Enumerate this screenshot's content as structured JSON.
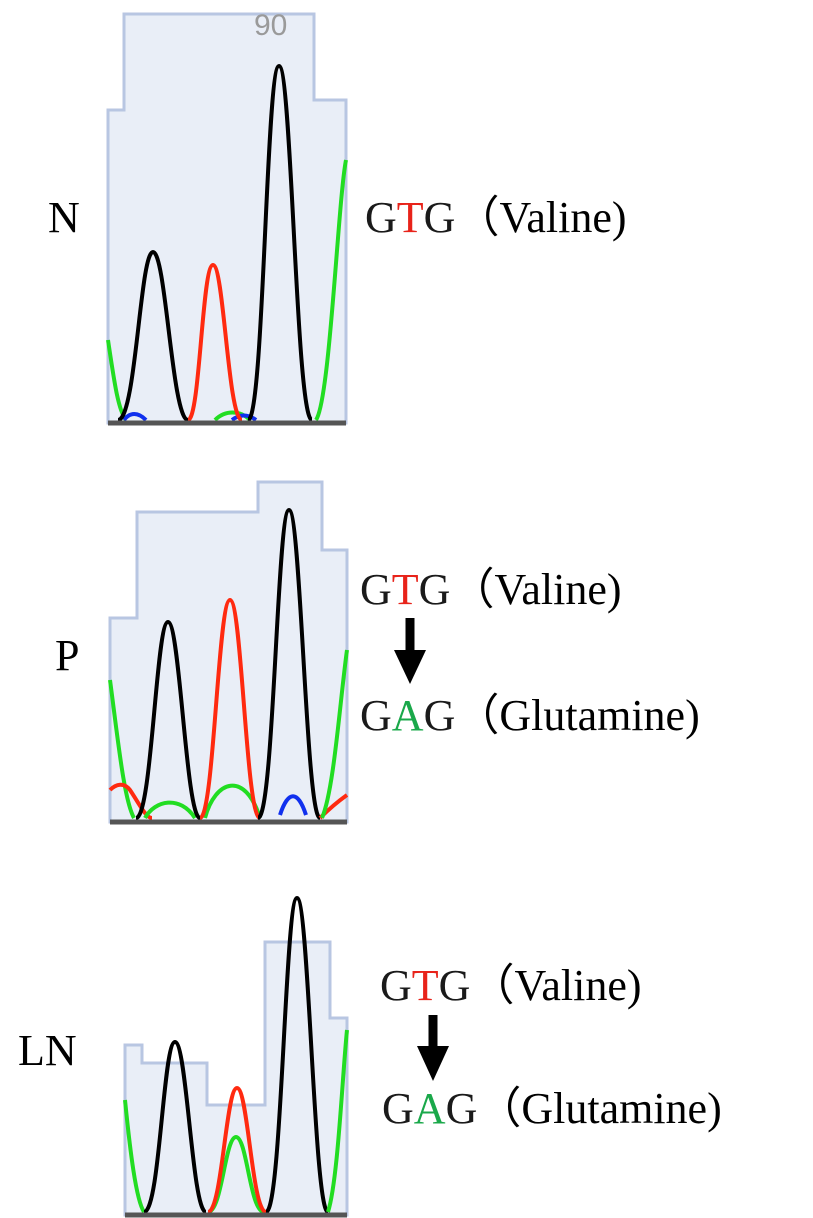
{
  "panels": [
    {
      "label": "N",
      "position_label": "90",
      "codons": [
        {
          "bases": [
            {
              "text": "G",
              "color": "#1a1a1a"
            },
            {
              "text": "T",
              "color": "#e8231a"
            },
            {
              "text": "G",
              "color": "#1a1a1a"
            }
          ],
          "amino_acid": "（Valine)"
        }
      ]
    },
    {
      "label": "P",
      "codons": [
        {
          "bases": [
            {
              "text": "G",
              "color": "#1a1a1a"
            },
            {
              "text": "T",
              "color": "#e8231a"
            },
            {
              "text": "G",
              "color": "#1a1a1a"
            }
          ],
          "amino_acid": "（Valine)"
        },
        {
          "bases": [
            {
              "text": "G",
              "color": "#1a1a1a"
            },
            {
              "text": "A",
              "color": "#1aa84a"
            },
            {
              "text": "G",
              "color": "#1a1a1a"
            }
          ],
          "amino_acid": "（Glutamine)"
        }
      ]
    },
    {
      "label": "LN",
      "codons": [
        {
          "bases": [
            {
              "text": "G",
              "color": "#1a1a1a"
            },
            {
              "text": "T",
              "color": "#e8231a"
            },
            {
              "text": "G",
              "color": "#1a1a1a"
            }
          ],
          "amino_acid": "（Valine)"
        },
        {
          "bases": [
            {
              "text": "G",
              "color": "#1a1a1a"
            },
            {
              "text": "A",
              "color": "#1aa84a"
            },
            {
              "text": "G",
              "color": "#1a1a1a"
            }
          ],
          "amino_acid": "（Glutamine)"
        }
      ]
    }
  ]
}
